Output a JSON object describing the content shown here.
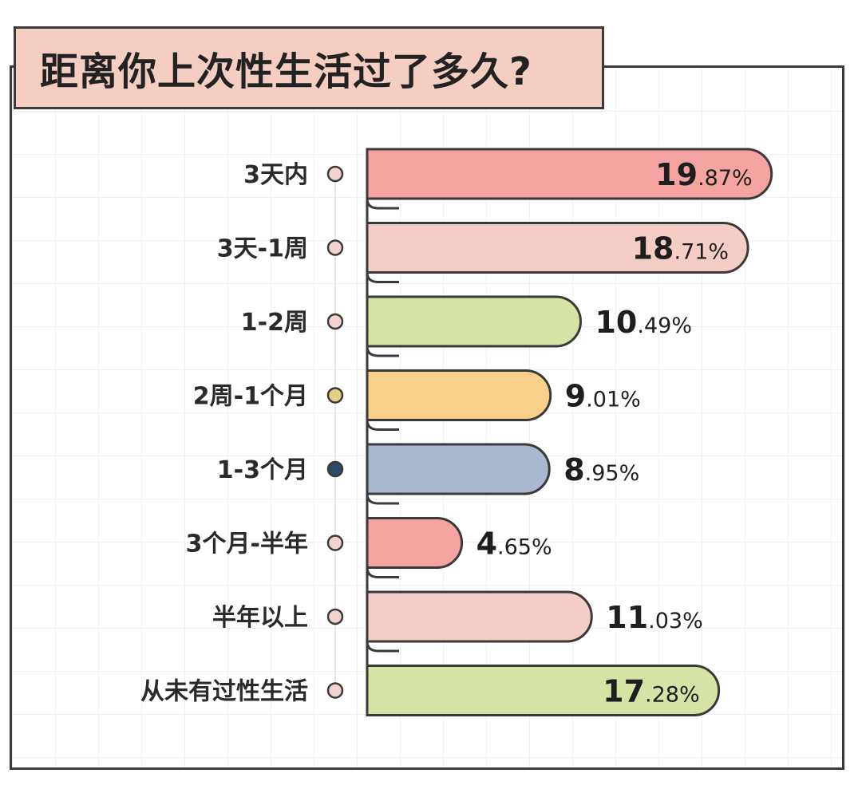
{
  "chart_data": {
    "type": "bar",
    "orientation": "horizontal",
    "title": "距离你上次性生活过了多久?",
    "categories": [
      "3天内",
      "3天-1周",
      "1-2周",
      "2周-1个月",
      "1-3个月",
      "3个月-半年",
      "半年以上",
      "从未有过性生活"
    ],
    "values": [
      19.87,
      18.71,
      10.49,
      9.01,
      8.95,
      4.65,
      11.03,
      17.28
    ],
    "value_labels": [
      {
        "int": "19",
        "dec": ".87%"
      },
      {
        "int": "18",
        "dec": ".71%"
      },
      {
        "int": "10",
        "dec": ".49%"
      },
      {
        "int": "9",
        "dec": ".01%"
      },
      {
        "int": "8",
        "dec": ".95%"
      },
      {
        "int": "4",
        "dec": ".65%"
      },
      {
        "int": "11",
        "dec": ".03%"
      },
      {
        "int": "17",
        "dec": ".28%"
      }
    ],
    "bar_colors": [
      "#f4a3a0",
      "#f4cdc6",
      "#d5e3a4",
      "#f8d08a",
      "#a7b8cf",
      "#f4a3a0",
      "#f4cdc6",
      "#d5e3a4"
    ],
    "dot_colors": [
      "#f1d4cf",
      "#f1d4cf",
      "#f1d4cf",
      "#e3d083",
      "#2d4868",
      "#f1d4cf",
      "#f1d4cf",
      "#f1d4cf"
    ],
    "grid": true,
    "legend": "none"
  },
  "colors": {
    "title_background": "#f4cdc3",
    "outline": "#3a3a3a"
  }
}
